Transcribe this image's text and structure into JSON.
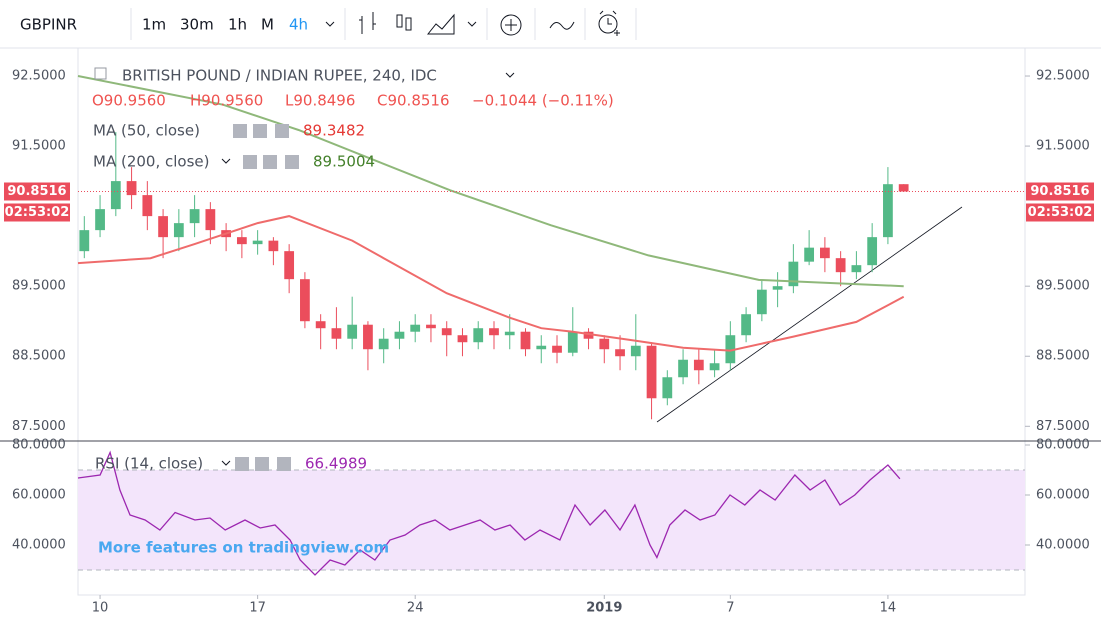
{
  "toolbar": {
    "symbol": "GBPINR",
    "intervals": [
      "1m",
      "30m",
      "1h",
      "M",
      "4h"
    ]
  },
  "chart_data": {
    "type": "candlestick",
    "title": "BRITISH POUND / INDIAN RUPEE, 240, IDC",
    "ohlc": [
      "O90.9560",
      "H90.9560",
      "L90.8496",
      "C90.8516"
    ],
    "change": "−0.1044 (−0.11%)",
    "last_price": 90.8516,
    "countdown": "02:53:02",
    "up_color": "#53b987",
    "down_color": "#eb4d5c",
    "x": [
      -0.5,
      0,
      0.5,
      1,
      1.5,
      2,
      2.5,
      3,
      3.5,
      4,
      4.5,
      5,
      5.5,
      6,
      6.5,
      7,
      7.5,
      8,
      8.5,
      9,
      9.5,
      10,
      10.5,
      11,
      11.5,
      12,
      12.5,
      13,
      13.5,
      14,
      14.5,
      15,
      15.5,
      16,
      16.5,
      17,
      17.5,
      18,
      18.5,
      19,
      19.5,
      20,
      20.5,
      21,
      21.5,
      22,
      22.5,
      23,
      23.5,
      24,
      24.5,
      25,
      25.5
    ],
    "open": [
      90.0,
      90.3,
      90.6,
      91.0,
      90.8,
      90.5,
      90.2,
      90.4,
      90.6,
      90.3,
      90.2,
      90.1,
      90.15,
      90.0,
      89.6,
      89.0,
      88.9,
      88.75,
      88.95,
      88.6,
      88.75,
      88.85,
      88.95,
      88.9,
      88.8,
      88.7,
      88.9,
      88.8,
      88.85,
      88.6,
      88.65,
      88.55,
      88.85,
      88.75,
      88.6,
      88.5,
      88.65,
      87.9,
      88.2,
      88.45,
      88.3,
      88.4,
      88.8,
      89.1,
      89.45,
      89.5,
      89.85,
      90.05,
      89.9,
      89.7,
      89.8,
      90.2,
      90.956
    ],
    "high": [
      90.5,
      90.8,
      91.7,
      91.2,
      91.0,
      90.6,
      90.6,
      90.8,
      90.7,
      90.4,
      90.3,
      90.3,
      90.2,
      90.1,
      89.7,
      89.1,
      89.2,
      89.35,
      89.0,
      88.9,
      89.0,
      89.1,
      89.1,
      89.0,
      88.9,
      89.0,
      89.0,
      89.1,
      88.9,
      88.8,
      88.8,
      89.2,
      88.9,
      88.8,
      88.8,
      89.1,
      88.7,
      88.3,
      88.6,
      88.6,
      88.6,
      89.0,
      89.2,
      89.6,
      89.7,
      90.1,
      90.3,
      90.2,
      90.0,
      90.0,
      90.4,
      91.2,
      90.956
    ],
    "low": [
      89.9,
      90.2,
      90.5,
      90.6,
      90.3,
      89.9,
      90.0,
      90.2,
      90.1,
      90.0,
      89.9,
      89.95,
      89.8,
      89.4,
      88.9,
      88.6,
      88.6,
      88.6,
      88.3,
      88.4,
      88.6,
      88.7,
      88.7,
      88.5,
      88.5,
      88.6,
      88.6,
      88.6,
      88.5,
      88.4,
      88.4,
      88.5,
      88.6,
      88.4,
      88.3,
      88.3,
      87.6,
      87.8,
      88.1,
      88.1,
      88.2,
      88.3,
      88.7,
      89.0,
      89.2,
      89.4,
      89.8,
      89.7,
      89.5,
      89.6,
      89.7,
      90.1,
      90.8496
    ],
    "close": [
      90.3,
      90.6,
      91.0,
      90.8,
      90.5,
      90.2,
      90.4,
      90.6,
      90.3,
      90.2,
      90.1,
      90.15,
      90.0,
      89.6,
      89.0,
      88.9,
      88.75,
      88.95,
      88.6,
      88.75,
      88.85,
      88.95,
      88.9,
      88.8,
      88.7,
      88.9,
      88.8,
      88.85,
      88.6,
      88.65,
      88.55,
      88.85,
      88.75,
      88.6,
      88.5,
      88.65,
      87.9,
      88.2,
      88.45,
      88.3,
      88.4,
      88.8,
      89.1,
      89.45,
      89.5,
      89.85,
      90.05,
      89.9,
      89.7,
      89.8,
      90.2,
      90.956,
      90.8516
    ],
    "xlim": [
      -0.7,
      29.35
    ],
    "xticks": [
      {
        "value": 0,
        "label": "10"
      },
      {
        "value": 5,
        "label": "17"
      },
      {
        "value": 10,
        "label": "24"
      },
      {
        "value": 16,
        "label": "2019"
      },
      {
        "value": 20,
        "label": "7"
      },
      {
        "value": 25,
        "label": "14"
      }
    ],
    "ylim": [
      87.29,
      92.9
    ],
    "yticks": [
      {
        "value": 87.5,
        "label": "87.5000"
      },
      {
        "value": 88.5,
        "label": "88.5000"
      },
      {
        "value": 89.5,
        "label": "89.5000"
      },
      {
        "value": 91.5,
        "label": "91.5000"
      },
      {
        "value": 92.5,
        "label": "92.5000"
      }
    ],
    "studies": [
      {
        "name": "MA (50, close)",
        "color": "#ef6b6b",
        "value_color": "#e53935",
        "x": [
          -0.7,
          1.6,
          3,
          5,
          6,
          8,
          9,
          11,
          13,
          14,
          15,
          17,
          18.5,
          20,
          22,
          24,
          25.5
        ],
        "values": [
          89.83,
          89.9,
          90.1,
          90.4,
          90.5,
          90.15,
          89.9,
          89.4,
          89.05,
          88.9,
          88.85,
          88.72,
          88.62,
          88.58,
          88.78,
          88.99,
          89.3482
        ]
      },
      {
        "name": "MA (200, close)",
        "color": "#8fb87a",
        "value_color": "#43802a",
        "x": [
          -0.7,
          3.9,
          6.3,
          11.1,
          14.3,
          17.4,
          20.9,
          25.5
        ],
        "values": [
          92.5,
          92.09,
          91.73,
          90.87,
          90.37,
          89.94,
          89.59,
          89.5004
        ]
      }
    ],
    "rsi": {
      "name": "RSI (14, close)",
      "color": "#9c27b0",
      "band": [
        30,
        70
      ],
      "band_color": "#f3e5fb",
      "ylim": [
        20,
        81.6
      ],
      "yticks": [
        {
          "value": 40,
          "label": "40.0000"
        },
        {
          "value": 60,
          "label": "60.0000"
        },
        {
          "value": 80,
          "label": "80.0000"
        }
      ],
      "x": [
        -0.7,
        0,
        0.32,
        0.63,
        0.95,
        1.43,
        1.9,
        2.38,
        3.01,
        3.49,
        3.97,
        4.6,
        5.08,
        5.55,
        6.03,
        6.35,
        6.82,
        7.3,
        7.77,
        8.25,
        8.72,
        9.2,
        9.68,
        10.15,
        10.63,
        11.1,
        11.58,
        12.06,
        12.53,
        13.01,
        13.48,
        13.96,
        14.59,
        15.07,
        15.55,
        16.02,
        16.5,
        16.97,
        17.45,
        17.67,
        18.08,
        18.56,
        19.04,
        19.51,
        19.99,
        20.46,
        20.94,
        21.42,
        22.05,
        22.53,
        23.0,
        23.48,
        23.95,
        24.43,
        25.0,
        25.38
      ],
      "values": [
        66.8,
        68,
        77,
        62,
        52,
        50,
        46,
        53,
        50,
        50.8,
        46,
        50,
        46.8,
        48,
        42,
        34,
        28,
        34,
        32,
        38,
        34,
        42,
        44,
        48,
        50,
        46,
        48,
        50,
        46,
        48,
        42,
        46,
        42,
        56,
        48,
        54,
        46,
        56,
        40,
        35,
        48,
        54,
        50,
        52,
        60,
        56,
        62,
        58,
        68,
        62,
        66,
        56,
        60,
        66,
        72,
        66.4989
      ]
    },
    "watermark": "More features on tradingview.com"
  }
}
